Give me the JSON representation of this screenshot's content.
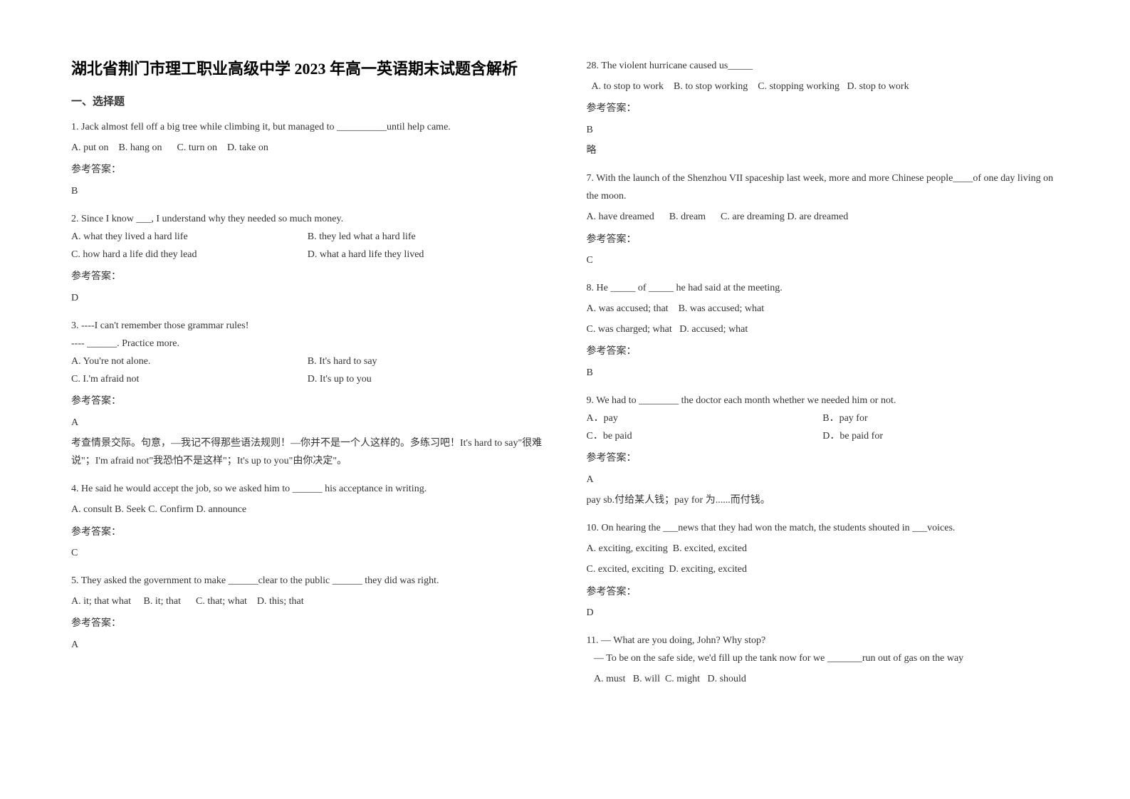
{
  "title": "湖北省荆门市理工职业高级中学 2023 年高一英语期末试题含解析",
  "section_header": "一、选择题",
  "answer_label": "参考答案：",
  "left_column": {
    "q1": {
      "text": "1. Jack almost fell off a big tree while climbing it, but managed to __________until help came.",
      "options": "A. put on    B. hang on      C. turn on    D. take on",
      "answer": "B"
    },
    "q2": {
      "text": "2. Since I know ___, I understand why they needed so much money.",
      "opt_a": "A. what they lived a hard life",
      "opt_b": "B. they led what a hard life",
      "opt_c": "C. how hard a life did they lead",
      "opt_d": "D. what a hard life they lived",
      "answer": "D"
    },
    "q3": {
      "text": "3. ----I can't remember those grammar rules!",
      "text2": "---- ______. Practice more.",
      "opt_a": "A. You're not alone.",
      "opt_b": "B. It's hard to say",
      "opt_c": "C. I.'m afraid not",
      "opt_d": "D. It's up to you",
      "answer": "A",
      "explanation": "考查情景交际。句意，—我记不得那些语法规则！—你并不是一个人这样的。多练习吧！It's hard to say\"很难说\"；I'm afraid not\"我恐怕不是这样\"；It's up to you\"由你决定\"。"
    },
    "q4": {
      "text": "4. He said he would accept the job, so we asked him to ______ his acceptance in writing.",
      "options": "A. consult  B. Seek  C. Confirm D. announce",
      "answer": "C"
    },
    "q5": {
      "text": "5. They asked the government to make ______clear to the public ______ they did was right.",
      "options": "A. it; that what     B. it; that      C. that; what    D. this; that",
      "answer": "A"
    }
  },
  "right_column": {
    "q28": {
      "text": "28. The violent hurricane caused us_____",
      "options": "  A. to stop to work    B. to stop working    C. stopping working   D. stop to work",
      "answer": "B",
      "note": "略"
    },
    "q7": {
      "text": "7. With the launch of the Shenzhou VII spaceship last week, more and more Chinese people____of one day living on the moon.",
      "options": "A. have dreamed      B. dream      C. are dreaming D. are dreamed",
      "answer": "C"
    },
    "q8": {
      "text": "8. He _____ of _____ he had said at the meeting.",
      "opt_ab": "A. was accused; that    B. was accused; what",
      "opt_cd": "C. was charged; what   D. accused; what",
      "answer": "B"
    },
    "q9": {
      "text": "9. We had to ________ the doctor each month whether we needed him or not.",
      "opt_a": "A．pay",
      "opt_b": "B．pay for",
      "opt_c": "C．be paid",
      "opt_d": "D．be paid for",
      "answer": "A",
      "explanation": "pay sb.付给某人钱；pay for 为......而付钱。"
    },
    "q10": {
      "text": "10. On hearing the ___news that they had won the match, the students shouted in ___voices.",
      "opt_ab": "A. exciting, exciting  B. excited, excited",
      "opt_cd": "C. excited, exciting  D. exciting, excited",
      "answer": "D"
    },
    "q11": {
      "text": "11. — What are you doing, John? Why stop?",
      "text2": "   — To be on the safe side, we'd fill up the tank now for we _______run out of gas on the way",
      "options": "   A. must   B. will  C. might   D. should"
    }
  }
}
